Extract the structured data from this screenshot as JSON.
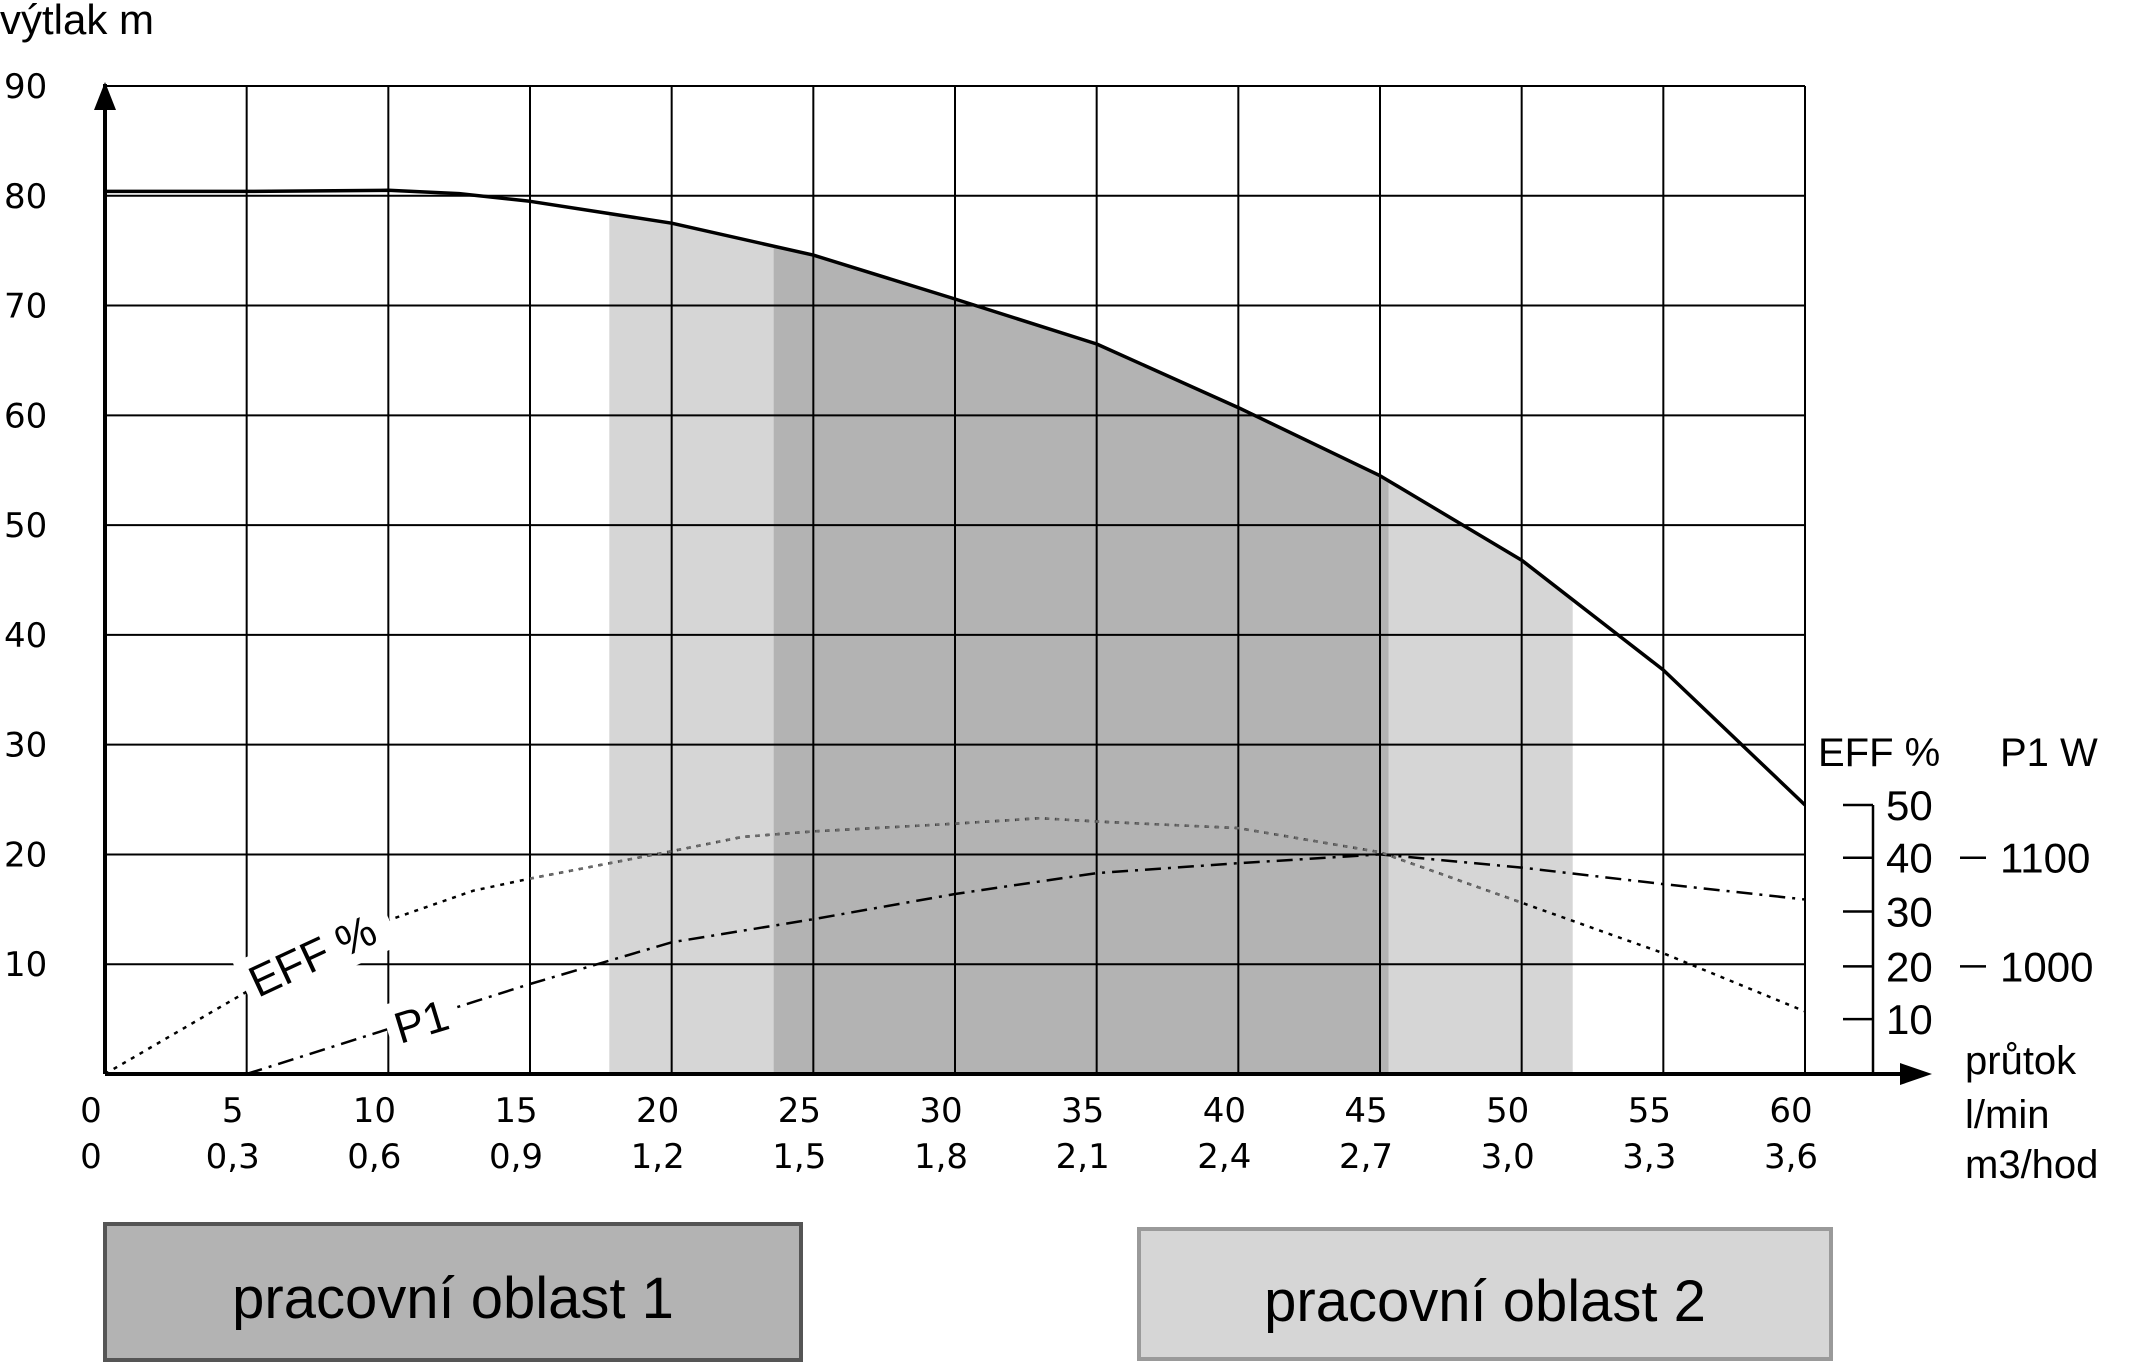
{
  "chart_data": {
    "type": "line",
    "y_axis_title": "výtlak  m",
    "y_ticks": [
      10,
      20,
      30,
      40,
      50,
      60,
      70,
      80,
      90
    ],
    "y_tick_labels": [
      "10",
      "20",
      "30",
      "40",
      "50",
      "60",
      "70",
      "80",
      "90"
    ],
    "ylim": [
      0,
      90
    ],
    "xlim": [
      0,
      60
    ],
    "x_ticks": [
      0,
      5,
      10,
      15,
      20,
      25,
      30,
      35,
      40,
      45,
      50,
      55,
      60
    ],
    "x_tick_labels_lmin": [
      "0",
      "5",
      "10",
      "15",
      "20",
      "25",
      "30",
      "35",
      "40",
      "45",
      "50",
      "55",
      "60"
    ],
    "x_tick_labels_m3": [
      "0",
      "0,3",
      "0,6",
      "0,9",
      "1,2",
      "1,5",
      "1,8",
      "2,1",
      "2,4",
      "2,7",
      "3,0",
      "3,3",
      "3,6"
    ],
    "x_axis_title": [
      "průtok",
      "l/min",
      "m3/hod"
    ],
    "grid": true,
    "series": [
      {
        "name": "výtlak",
        "style": "solid",
        "x": [
          0,
          5,
          10,
          12.5,
          15,
          20,
          25,
          30,
          35,
          40,
          45,
          50,
          55,
          60
        ],
        "y": [
          80.4,
          80.4,
          80.5,
          80.2,
          79.5,
          77.5,
          74.6,
          70.6,
          66.5,
          60.7,
          54.5,
          46.8,
          36.8,
          24.5
        ]
      },
      {
        "name": "EFF %",
        "style": "dotted",
        "x": [
          0,
          5,
          10,
          13,
          15,
          20,
          22.5,
          25,
          30,
          33,
          35,
          40,
          45,
          50,
          55,
          60
        ],
        "y": [
          0,
          7.5,
          14,
          16.7,
          17.8,
          20.3,
          21.6,
          22.1,
          22.8,
          23.3,
          23,
          22.4,
          20.2,
          15.6,
          11,
          5.7
        ]
      },
      {
        "name": "P1",
        "style": "dash-dot",
        "x": [
          5,
          10,
          15,
          20,
          25,
          30,
          35,
          40,
          45,
          50,
          55,
          60
        ],
        "y": [
          0,
          4.1,
          8.2,
          12,
          14.1,
          16.4,
          18.3,
          19.2,
          20,
          18.8,
          17.3,
          15.9
        ]
      }
    ],
    "inline_labels": {
      "eff": "EFF %",
      "p1": "P1"
    },
    "secondary_axes": {
      "eff_title": "EFF %",
      "p1_title": "P1 W",
      "eff_ticks": [
        {
          "label": "50",
          "y_on_main": 24.5
        },
        {
          "label": "40",
          "y_on_main": 19.7
        },
        {
          "label": "30",
          "y_on_main": 14.8
        },
        {
          "label": "20",
          "y_on_main": 9.8
        },
        {
          "label": "10",
          "y_on_main": 5
        }
      ],
      "p1_ticks": [
        {
          "label": "1100",
          "y_on_main": 19.7
        },
        {
          "label": "1000",
          "y_on_main": 9.8
        }
      ]
    },
    "regions": [
      {
        "name": "pracovní oblast 2",
        "x_from": 17.8,
        "x_to": 51.8,
        "shade": "light",
        "color": "#d6d6d6"
      },
      {
        "name": "pracovní oblast 1",
        "x_from": 23.6,
        "x_to": 45.3,
        "shade": "dark",
        "color": "#b3b3b3"
      }
    ]
  },
  "legend": {
    "region1_label": "pracovní oblast 1",
    "region1_color": "#b3b3b3",
    "region2_label": "pracovní oblast 2",
    "region2_color": "#d6d6d6"
  }
}
